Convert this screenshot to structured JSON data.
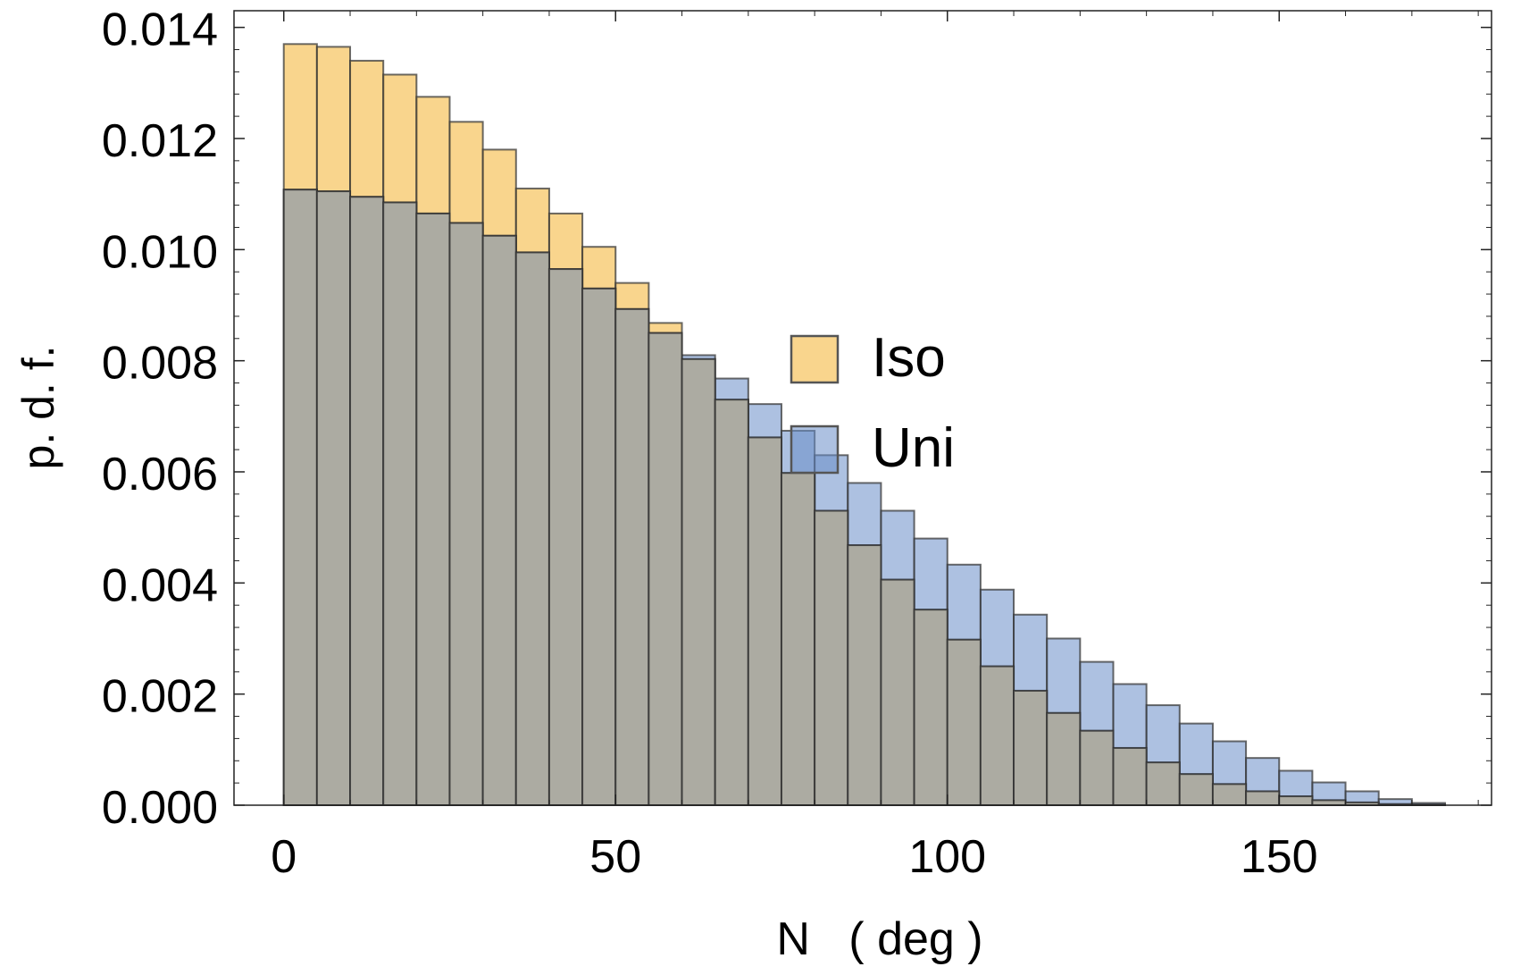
{
  "chart_data": {
    "type": "bar",
    "xlabel": "N   ( deg )",
    "ylabel": "p. d. f.",
    "xlim": [
      -7.5,
      182
    ],
    "ylim": [
      0,
      0.0143
    ],
    "bin_width": 5,
    "bin_starts": [
      0,
      5,
      10,
      15,
      20,
      25,
      30,
      35,
      40,
      45,
      50,
      55,
      60,
      65,
      70,
      75,
      80,
      85,
      90,
      95,
      100,
      105,
      110,
      115,
      120,
      125,
      130,
      135,
      140,
      145,
      150,
      155,
      160,
      165,
      170
    ],
    "x_ticks": [
      0,
      50,
      100,
      150
    ],
    "x_tick_labels": [
      "0",
      "50",
      "100",
      "150"
    ],
    "y_ticks": [
      0,
      0.002,
      0.004,
      0.006,
      0.008,
      0.01,
      0.012,
      0.014
    ],
    "y_tick_labels": [
      "0.000",
      "0.002",
      "0.004",
      "0.006",
      "0.008",
      "0.010",
      "0.012",
      "0.014"
    ],
    "legend_position": "center",
    "series": [
      {
        "name": "Iso",
        "color": "#f5b941",
        "values": [
          0.0137,
          0.01365,
          0.0134,
          0.01315,
          0.01275,
          0.0123,
          0.0118,
          0.0111,
          0.01065,
          0.01005,
          0.0094,
          0.00868,
          0.00803,
          0.0073,
          0.00662,
          0.00598,
          0.0053,
          0.00468,
          0.00406,
          0.00352,
          0.00298,
          0.0025,
          0.00206,
          0.00166,
          0.00134,
          0.00103,
          0.00077,
          0.00056,
          0.00038,
          0.00025,
          0.00016,
          9e-05,
          5e-05,
          2e-05,
          1e-05
        ]
      },
      {
        "name": "Uni",
        "color": "#6a8ec8",
        "values": [
          0.01108,
          0.01105,
          0.01095,
          0.01085,
          0.01065,
          0.01048,
          0.01025,
          0.00995,
          0.00965,
          0.0093,
          0.00893,
          0.0085,
          0.0081,
          0.00768,
          0.00722,
          0.00674,
          0.0063,
          0.0058,
          0.0053,
          0.0048,
          0.00433,
          0.00388,
          0.00343,
          0.003,
          0.00258,
          0.00218,
          0.0018,
          0.00147,
          0.00115,
          0.00085,
          0.00062,
          0.00041,
          0.00025,
          0.00011,
          4e-05
        ]
      }
    ]
  }
}
